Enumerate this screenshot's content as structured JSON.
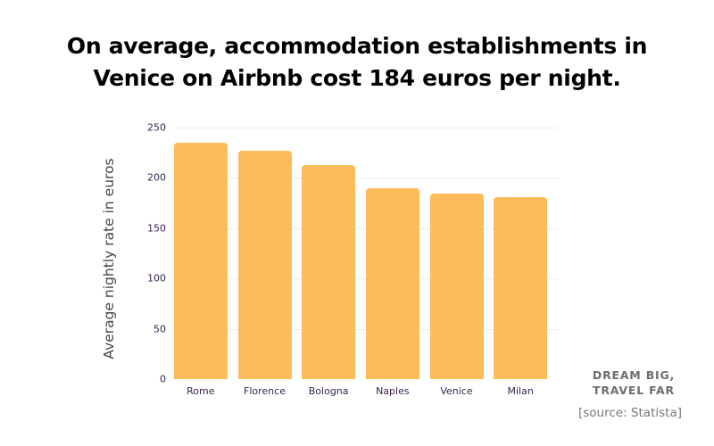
{
  "header": {
    "title_line1": "On average, accommodation establishments in",
    "title_line2": "Venice on Airbnb cost 184 euros per night."
  },
  "footer": {
    "brand_line1": "DREAM BIG,",
    "brand_line2": "TRAVEL FAR",
    "source": "[source: Statista]"
  },
  "colors": {
    "bar": "#FDBB5A",
    "tick_text": "#3a2350"
  },
  "chart_data": {
    "type": "bar",
    "title": "On average, accommodation establishments in Venice on Airbnb cost 184 euros per night.",
    "xlabel": "",
    "ylabel": "Average nightly rate in euros",
    "categories": [
      "Rome",
      "Florence",
      "Bologna",
      "Naples",
      "Venice",
      "Milan"
    ],
    "values": [
      235,
      227,
      213,
      190,
      184,
      181
    ],
    "ylim": [
      0,
      250
    ],
    "yticks": [
      "0",
      "50",
      "100",
      "150",
      "200",
      "250"
    ],
    "grid": true,
    "legend": null
  }
}
